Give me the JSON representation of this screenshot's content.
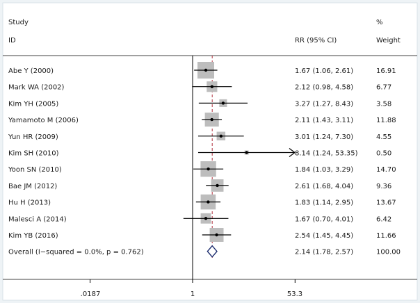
{
  "chart_data": {
    "type": "forest",
    "title": "",
    "headers": {
      "study_line1": "Study",
      "study_line2": "ID",
      "effect": "RR (95% CI)",
      "weight_line1": "%",
      "weight_line2": "Weight"
    },
    "x_scale": "log",
    "x_ticks": [
      {
        "value": 0.0187,
        "label": ".0187"
      },
      {
        "value": 1,
        "label": "1"
      },
      {
        "value": 53.3,
        "label": "53.3"
      }
    ],
    "null_line": 1,
    "overall_line": 2.14,
    "studies": [
      {
        "id": "Abe Y (2000)",
        "rr": 1.67,
        "lo": 1.06,
        "hi": 2.61,
        "rr_text": "1.67 (1.06, 2.61)",
        "weight": 16.91,
        "weight_text": "16.91"
      },
      {
        "id": "Mark WA (2002)",
        "rr": 2.12,
        "lo": 0.98,
        "hi": 4.58,
        "rr_text": "2.12 (0.98, 4.58)",
        "weight": 6.77,
        "weight_text": "6.77"
      },
      {
        "id": "Kim YH (2005)",
        "rr": 3.27,
        "lo": 1.27,
        "hi": 8.43,
        "rr_text": "3.27 (1.27, 8.43)",
        "weight": 3.58,
        "weight_text": "3.58"
      },
      {
        "id": "Yamamoto M (2006)",
        "rr": 2.11,
        "lo": 1.43,
        "hi": 3.11,
        "rr_text": "2.11 (1.43, 3.11)",
        "weight": 11.88,
        "weight_text": "11.88"
      },
      {
        "id": "Yun HR (2009)",
        "rr": 3.01,
        "lo": 1.24,
        "hi": 7.3,
        "rr_text": "3.01 (1.24, 7.30)",
        "weight": 4.55,
        "weight_text": "4.55"
      },
      {
        "id": "Kim SH (2010)",
        "rr": 8.14,
        "lo": 1.24,
        "hi": 53.35,
        "rr_text": "8.14 (1.24, 53.35)",
        "weight": 0.5,
        "weight_text": "0.50",
        "arrow": true
      },
      {
        "id": "Yoon SN (2010)",
        "rr": 1.84,
        "lo": 1.03,
        "hi": 3.29,
        "rr_text": "1.84 (1.03, 3.29)",
        "weight": 14.7,
        "weight_text": "14.70"
      },
      {
        "id": "Bae JM (2012)",
        "rr": 2.61,
        "lo": 1.68,
        "hi": 4.04,
        "rr_text": "2.61 (1.68, 4.04)",
        "weight": 9.36,
        "weight_text": "9.36"
      },
      {
        "id": "Hu H (2013)",
        "rr": 1.83,
        "lo": 1.14,
        "hi": 2.95,
        "rr_text": "1.83 (1.14, 2.95)",
        "weight": 13.67,
        "weight_text": "13.67"
      },
      {
        "id": "Malesci A (2014)",
        "rr": 1.67,
        "lo": 0.7,
        "hi": 4.01,
        "rr_text": "1.67 (0.70, 4.01)",
        "weight": 6.42,
        "weight_text": "6.42"
      },
      {
        "id": "Kim YB (2016)",
        "rr": 2.54,
        "lo": 1.45,
        "hi": 4.45,
        "rr_text": "2.54 (1.45, 4.45)",
        "weight": 11.66,
        "weight_text": "11.66"
      }
    ],
    "overall": {
      "id": "Overall  (I−squared = 0.0%, p = 0.762)",
      "rr": 2.14,
      "lo": 1.78,
      "hi": 2.57,
      "rr_text": "2.14 (1.78, 2.57)",
      "weight_text": "100.00"
    },
    "colors": {
      "background": "#eef3f6",
      "panel": "#ffffff",
      "box": "#bdbdbd",
      "line": "#000000",
      "null_line": "#000000",
      "overall_line": "#b2323f",
      "diamond": "#1c2c6e",
      "text": "#1a1a1a"
    }
  }
}
